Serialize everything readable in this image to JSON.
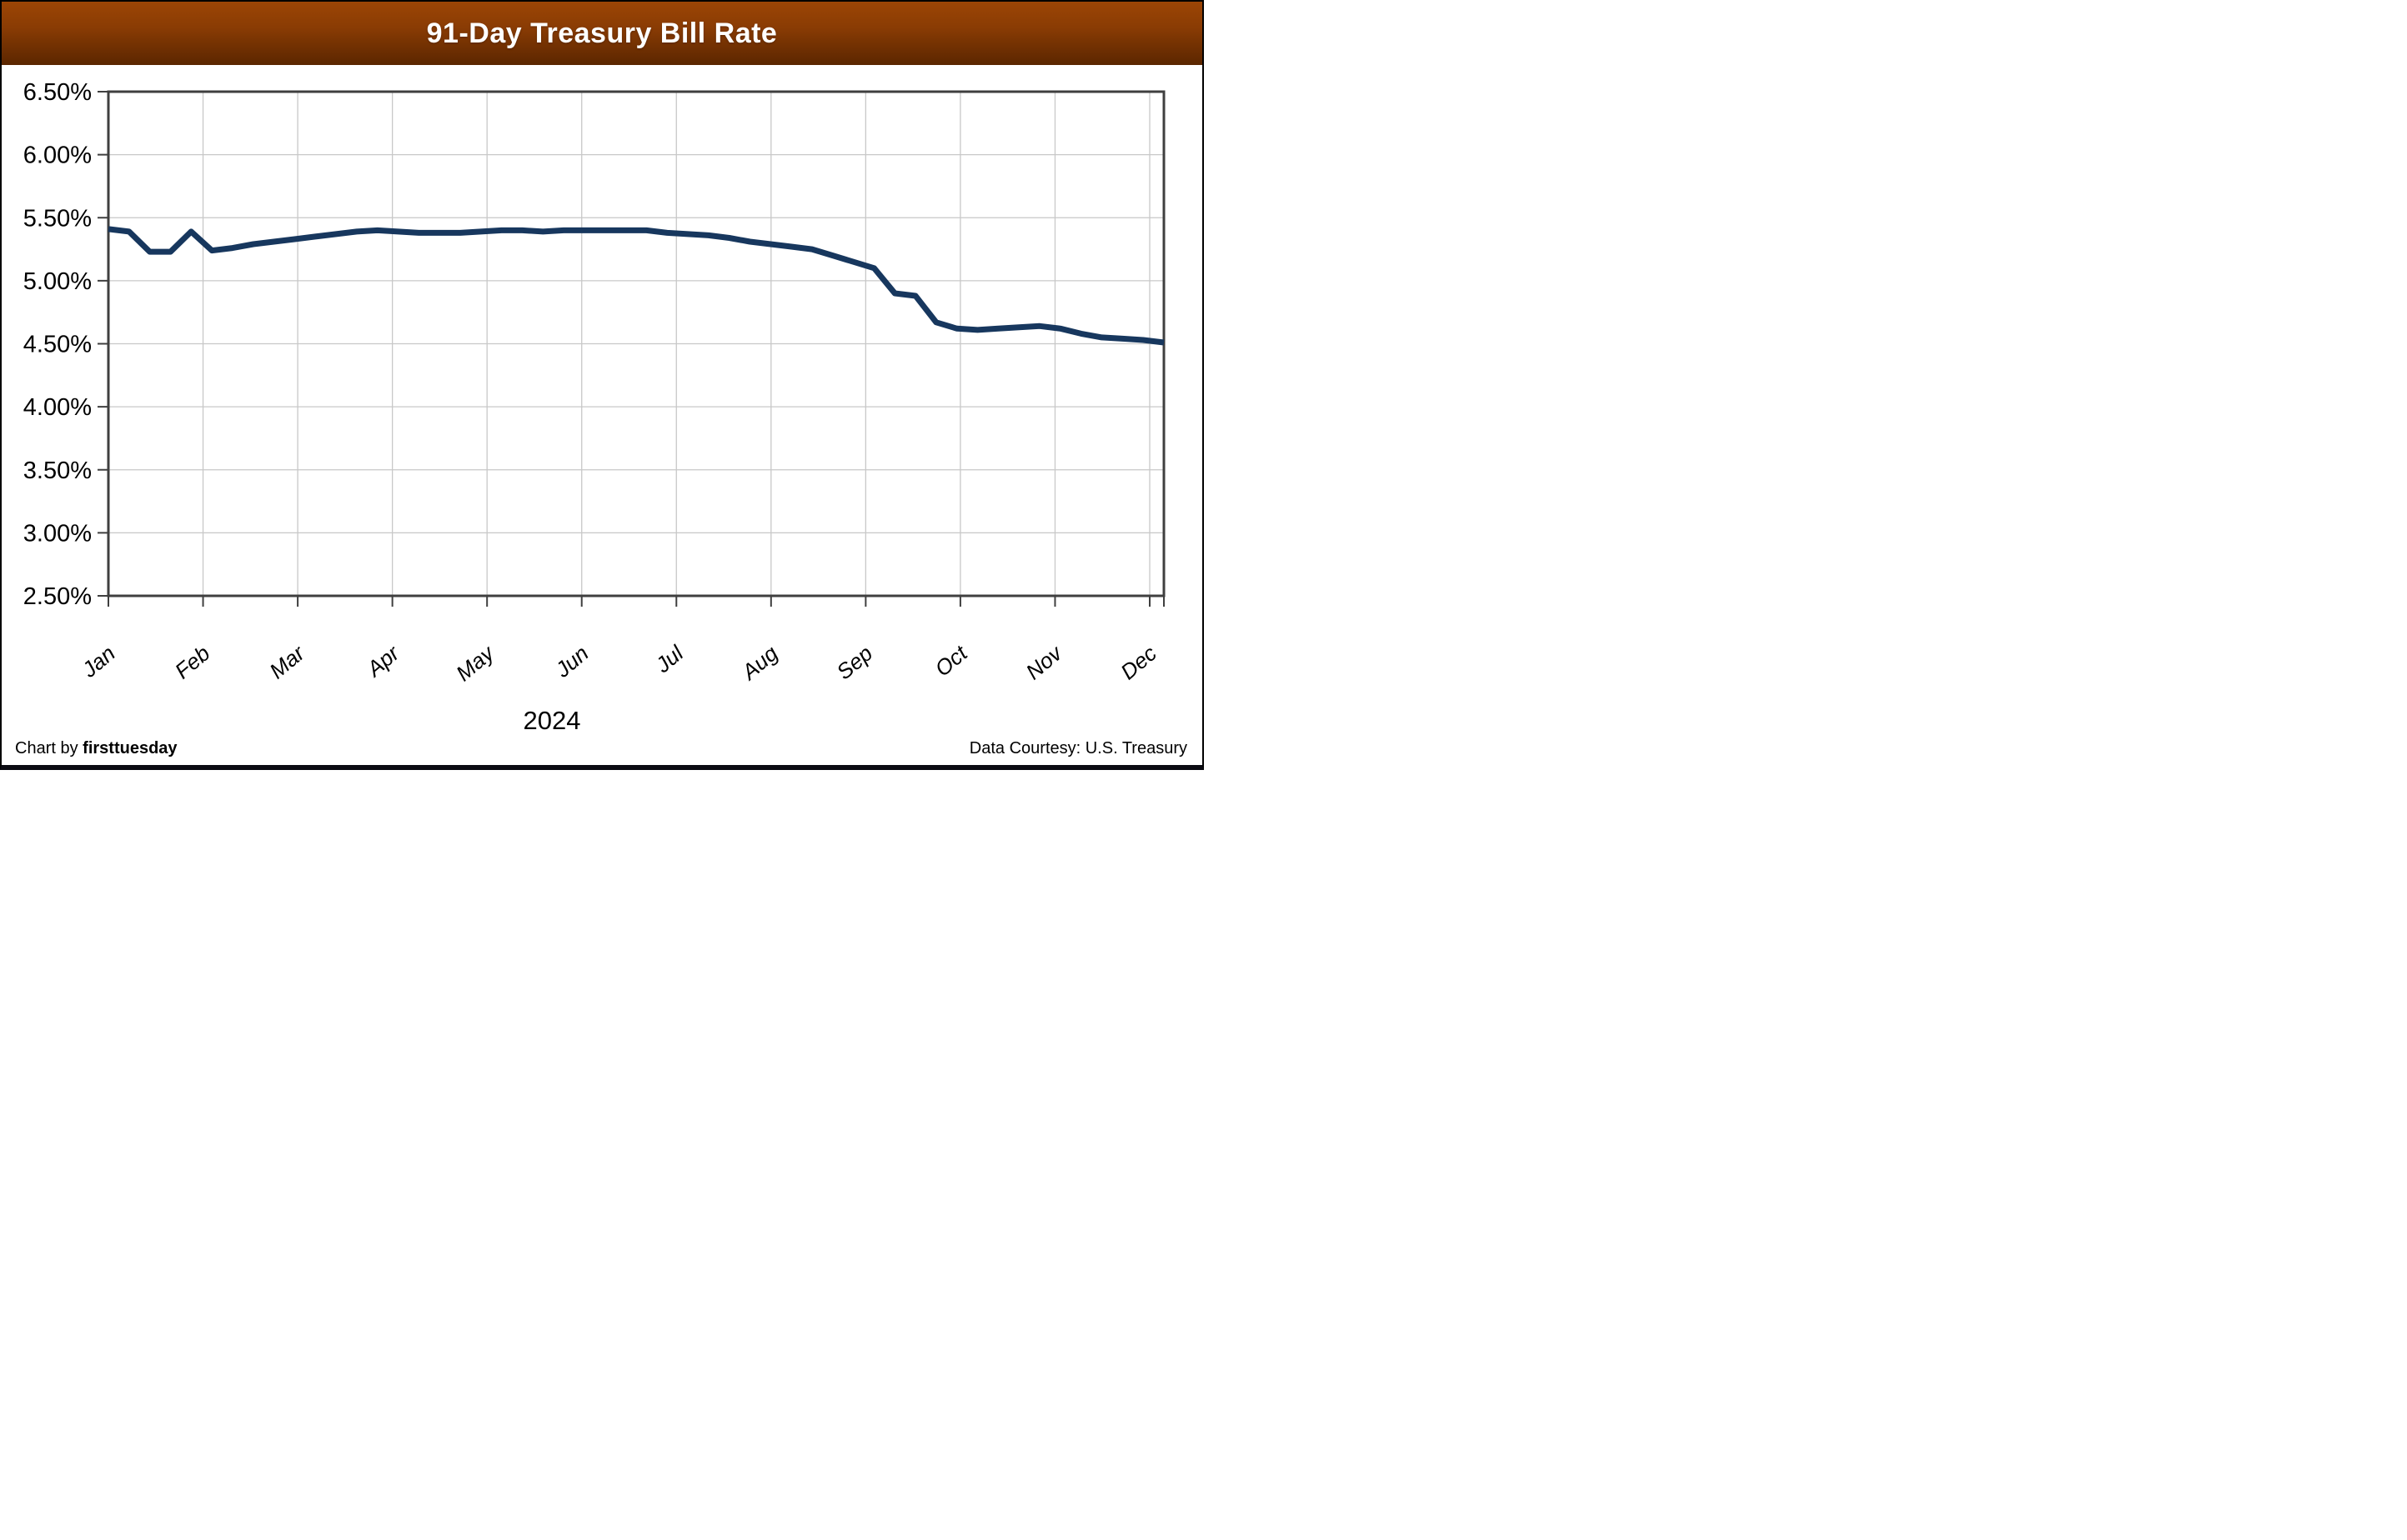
{
  "header": {
    "title": "91-Day Treasury Bill Rate",
    "banner_gradient_top": "#9C4505",
    "banner_gradient_bottom": "#5B2600",
    "title_color": "#FFFFFF"
  },
  "footer": {
    "credit_prefix": "Chart by ",
    "credit_brand": "firsttuesday",
    "data_courtesy": "Data Courtesy: U.S. Treasury"
  },
  "chart_data": {
    "type": "line",
    "title": "91-Day Treasury Bill Rate",
    "year": "2024",
    "x_categories": [
      "Jan",
      "Feb",
      "Mar",
      "Apr",
      "May",
      "Jun",
      "Jul",
      "Aug",
      "Sep",
      "Oct",
      "Nov",
      "Dec"
    ],
    "x_cadence": "weekly (52 points, Jan–Dec 2024)",
    "ylim": [
      2.5,
      6.5
    ],
    "ytick_step": 0.5,
    "ytick_labels": [
      "6.50%",
      "6.00%",
      "5.50%",
      "5.00%",
      "4.50%",
      "4.00%",
      "3.50%",
      "3.00%",
      "2.50%"
    ],
    "grid": true,
    "legend": "none",
    "colors": {
      "line": "#17375E",
      "gridline": "#C8C8C8",
      "axis_border": "#3F3F3F",
      "tick": "#3F3F3F"
    },
    "series": [
      {
        "name": "91-Day Treasury Bill Rate",
        "values": [
          5.41,
          5.39,
          5.23,
          5.23,
          5.39,
          5.24,
          5.26,
          5.29,
          5.31,
          5.33,
          5.35,
          5.37,
          5.39,
          5.4,
          5.39,
          5.38,
          5.38,
          5.38,
          5.39,
          5.4,
          5.4,
          5.39,
          5.4,
          5.4,
          5.4,
          5.4,
          5.4,
          5.38,
          5.37,
          5.36,
          5.34,
          5.31,
          5.29,
          5.27,
          5.25,
          5.2,
          5.15,
          5.1,
          4.9,
          4.88,
          4.67,
          4.62,
          4.61,
          4.62,
          4.63,
          4.64,
          4.62,
          4.58,
          4.55,
          4.54,
          4.53,
          4.51
        ]
      }
    ]
  }
}
